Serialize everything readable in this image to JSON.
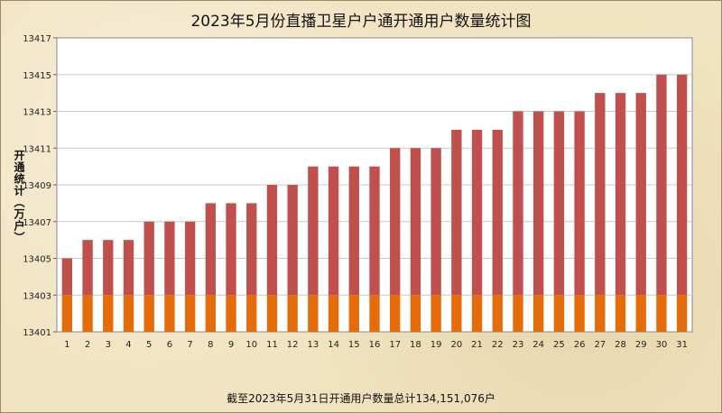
{
  "chart_data": {
    "type": "bar",
    "title": "2023年5月份直播卫星户户通开通用户数量统计图",
    "ylabel": "开通统计（万户）",
    "footer": "截至2023年5月31日开通用户数量总计134,151,076户",
    "categories": [
      "1",
      "2",
      "3",
      "4",
      "5",
      "6",
      "7",
      "8",
      "9",
      "10",
      "11",
      "12",
      "13",
      "14",
      "15",
      "16",
      "17",
      "18",
      "19",
      "20",
      "21",
      "22",
      "23",
      "24",
      "25",
      "26",
      "27",
      "28",
      "29",
      "30",
      "31"
    ],
    "values": [
      13405,
      13406,
      13406,
      13406,
      13407,
      13407,
      13407,
      13408,
      13408,
      13408,
      13409,
      13409,
      13410,
      13410,
      13410,
      13410,
      13411,
      13411,
      13411,
      13412,
      13412,
      13412,
      13413,
      13413,
      13413,
      13413,
      13414,
      13414,
      13414,
      13415,
      13415
    ],
    "ylim": [
      13401,
      13417
    ],
    "yticks": [
      "13401",
      "13403",
      "13405",
      "13407",
      "13409",
      "13411",
      "13413",
      "13415",
      "13417"
    ],
    "base_value": 13403,
    "grid": true,
    "colors": {
      "bar_top": "#c0504d",
      "bar_base": "#e46c0a",
      "plot_bg": "#ffffff",
      "grid": "#c8c8c8"
    }
  }
}
